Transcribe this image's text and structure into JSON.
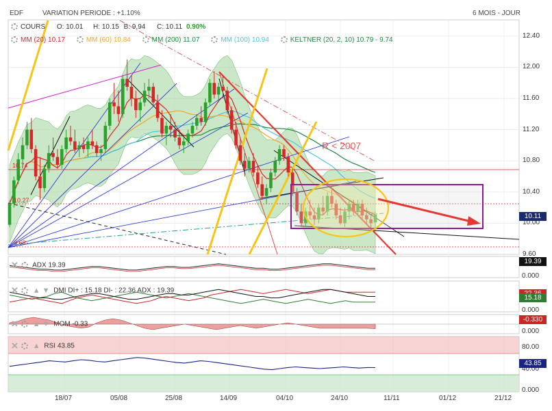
{
  "header": {
    "symbol": "EDF",
    "variation": "VARIATION PERIODE : +1.10%",
    "period": "6 MOIS - JOUR"
  },
  "legend": {
    "cours": "COURS",
    "open": "O: 10.01",
    "high": "H: 10.15",
    "low": "B: 9.94",
    "close": "C: 10.11",
    "change": "0.90%",
    "mm20": "MM (20)",
    "mm20_val": "10.17",
    "mm60": "MM (60)",
    "mm60_val": "10.84",
    "mm200": "MM (200)",
    "mm200_val": "11.07",
    "mm100": "MM (100)",
    "mm100_val": "10.94",
    "keltner": "KELTNER (20, 2, 10)",
    "keltner_val": "10.79 - 9.74"
  },
  "colors": {
    "up": "#2ca02c",
    "down": "#d62728",
    "mm20": "#d62728",
    "mm60": "#f5a623",
    "mm200": "#1a8a3a",
    "mm100": "#4fc3e0",
    "keltner_fill": "#9ed49a",
    "box": "#8b1a8b",
    "ellipse": "#f5c518",
    "yellow_lines": "#f5c518"
  },
  "annotations": {
    "r2007": "R < 2007",
    "level_high": "10.74",
    "level_low": "10.27",
    "level_min": "9.68"
  },
  "price_axis": {
    "ticks": [
      "12.40",
      "12.00",
      "11.60",
      "11.20",
      "10.80",
      "10.40",
      "10.00",
      "9.60"
    ],
    "last_price": "10.11"
  },
  "x_axis": {
    "ticks": [
      "18/07",
      "05/08",
      "25/08",
      "14/09",
      "04/10",
      "24/10",
      "11/11",
      "01/12",
      "21/12"
    ]
  },
  "indicators": {
    "adx": {
      "label": "ADX",
      "value": "19.39",
      "axis": "0.000",
      "badge": "19.39"
    },
    "dmi": {
      "label": "DMI",
      "text": "DI+ : 15.18 DI- : 22.36 ADX : 19.39",
      "axis": "0.000",
      "badge1": "22.36",
      "badge2": "15.18"
    },
    "mom": {
      "label": "MOM",
      "value": "-0.33",
      "axis": "0.000",
      "badge": "-0.330"
    },
    "rsi": {
      "label": "RSI",
      "value": "43.85",
      "axis80": "80.00",
      "axis40": "40.00",
      "axis0": "0.000",
      "badge": "43.85"
    }
  },
  "chart_data": {
    "type": "line",
    "title": "EDF",
    "price_range": [
      9.6,
      12.6
    ],
    "candles": [
      [
        9.98,
        10.3,
        9.95,
        10.25
      ],
      [
        10.25,
        10.6,
        10.2,
        10.55
      ],
      [
        10.55,
        10.9,
        10.5,
        10.82
      ],
      [
        10.82,
        11.1,
        10.7,
        11.0
      ],
      [
        11.0,
        11.3,
        10.95,
        11.2
      ],
      [
        11.2,
        11.35,
        10.9,
        10.95
      ],
      [
        10.95,
        11.0,
        10.55,
        10.6
      ],
      [
        10.6,
        10.85,
        10.3,
        10.45
      ],
      [
        10.45,
        10.75,
        10.4,
        10.7
      ],
      [
        10.7,
        11.0,
        10.65,
        10.9
      ],
      [
        10.9,
        11.1,
        10.8,
        10.85
      ],
      [
        10.85,
        10.95,
        10.7,
        10.75
      ],
      [
        10.75,
        11.0,
        10.7,
        10.95
      ],
      [
        10.95,
        11.2,
        10.9,
        11.1
      ],
      [
        11.1,
        11.25,
        11.0,
        11.05
      ],
      [
        11.05,
        11.2,
        10.9,
        10.95
      ],
      [
        10.95,
        11.05,
        10.85,
        11.0
      ],
      [
        11.0,
        11.1,
        10.9,
        10.95
      ],
      [
        10.95,
        11.1,
        10.85,
        11.05
      ],
      [
        11.05,
        11.2,
        10.95,
        11.0
      ],
      [
        11.0,
        11.05,
        10.85,
        10.9
      ],
      [
        10.9,
        11.0,
        10.8,
        10.95
      ],
      [
        10.95,
        11.3,
        10.9,
        11.25
      ],
      [
        11.25,
        11.6,
        11.2,
        11.55
      ],
      [
        11.55,
        11.8,
        11.4,
        11.5
      ],
      [
        11.5,
        11.7,
        11.3,
        11.4
      ],
      [
        11.4,
        11.9,
        11.35,
        11.85
      ],
      [
        11.85,
        12.1,
        11.7,
        11.75
      ],
      [
        11.75,
        11.9,
        11.5,
        11.6
      ],
      [
        11.6,
        11.7,
        11.35,
        11.45
      ],
      [
        11.45,
        11.6,
        11.3,
        11.55
      ],
      [
        11.55,
        11.8,
        11.5,
        11.7
      ],
      [
        11.7,
        11.85,
        11.6,
        11.75
      ],
      [
        11.75,
        11.8,
        11.5,
        11.55
      ],
      [
        11.55,
        11.65,
        11.3,
        11.35
      ],
      [
        11.35,
        11.45,
        11.1,
        11.15
      ],
      [
        11.15,
        11.3,
        11.0,
        11.25
      ],
      [
        11.25,
        11.4,
        11.1,
        11.2
      ],
      [
        11.2,
        11.3,
        11.05,
        11.1
      ],
      [
        11.1,
        11.2,
        10.95,
        11.0
      ],
      [
        11.0,
        11.1,
        10.9,
        11.05
      ],
      [
        11.05,
        11.2,
        11.0,
        11.15
      ],
      [
        11.15,
        11.3,
        11.1,
        11.25
      ],
      [
        11.25,
        11.4,
        11.2,
        11.35
      ],
      [
        11.35,
        11.5,
        11.25,
        11.3
      ],
      [
        11.3,
        11.6,
        11.25,
        11.55
      ],
      [
        11.55,
        11.85,
        11.5,
        11.8
      ],
      [
        11.8,
        11.95,
        11.6,
        11.65
      ],
      [
        11.65,
        11.8,
        11.55,
        11.75
      ],
      [
        11.75,
        11.9,
        11.6,
        11.7
      ],
      [
        11.7,
        11.75,
        11.4,
        11.45
      ],
      [
        11.45,
        11.5,
        11.15,
        11.2
      ],
      [
        11.2,
        11.3,
        10.95,
        11.0
      ],
      [
        11.0,
        11.1,
        10.75,
        10.8
      ],
      [
        10.8,
        10.9,
        10.6,
        10.7
      ],
      [
        10.7,
        10.85,
        10.65,
        10.8
      ],
      [
        10.8,
        10.9,
        10.6,
        10.65
      ],
      [
        10.65,
        10.75,
        10.45,
        10.5
      ],
      [
        10.5,
        10.6,
        10.3,
        10.35
      ],
      [
        10.35,
        10.5,
        10.25,
        10.45
      ],
      [
        10.45,
        10.7,
        10.4,
        10.65
      ],
      [
        10.65,
        10.85,
        10.6,
        10.8
      ],
      [
        10.8,
        11.0,
        10.75,
        10.95
      ],
      [
        10.95,
        11.0,
        10.8,
        10.85
      ],
      [
        10.85,
        10.9,
        10.6,
        10.65
      ],
      [
        10.65,
        10.7,
        10.35,
        10.4
      ],
      [
        10.4,
        10.45,
        10.1,
        10.15
      ],
      [
        10.15,
        10.25,
        9.95,
        10.0
      ],
      [
        10.0,
        10.2,
        9.95,
        10.15
      ],
      [
        10.15,
        10.3,
        10.05,
        10.1
      ],
      [
        10.1,
        10.2,
        9.98,
        10.05
      ],
      [
        10.05,
        10.25,
        10.0,
        10.2
      ],
      [
        10.2,
        10.35,
        10.1,
        10.15
      ],
      [
        10.15,
        10.4,
        10.1,
        10.35
      ],
      [
        10.35,
        10.45,
        10.2,
        10.25
      ],
      [
        10.25,
        10.3,
        10.05,
        10.1
      ],
      [
        10.1,
        10.2,
        9.98,
        10.0
      ],
      [
        10.0,
        10.2,
        9.95,
        10.15
      ],
      [
        10.15,
        10.3,
        10.05,
        10.25
      ],
      [
        10.25,
        10.3,
        10.1,
        10.15
      ],
      [
        10.15,
        10.3,
        10.1,
        10.25
      ],
      [
        10.25,
        10.3,
        10.05,
        10.1
      ],
      [
        10.1,
        10.2,
        9.98,
        10.05
      ],
      [
        10.05,
        10.1,
        9.9,
        10.0
      ],
      [
        10.01,
        10.15,
        9.94,
        10.11
      ]
    ],
    "adx": [
      22,
      21,
      20,
      19,
      18,
      18,
      17,
      17,
      18,
      19,
      20,
      21,
      21,
      20,
      19,
      18,
      17,
      17,
      18,
      19,
      20,
      21,
      21,
      20,
      20,
      21,
      22,
      23,
      24,
      23,
      22,
      21,
      20,
      19,
      19,
      18,
      18,
      19,
      20,
      21,
      22,
      23,
      24,
      24,
      23,
      22,
      21,
      20,
      19,
      19
    ],
    "di_plus": [
      20,
      19,
      18,
      17,
      18,
      19,
      21,
      22,
      20,
      18,
      17,
      16,
      17,
      18,
      19,
      20,
      21,
      22,
      21,
      20,
      19,
      18,
      19,
      20,
      21,
      20,
      19,
      18,
      17,
      16,
      15,
      14,
      15,
      16,
      17,
      16,
      15,
      14,
      15,
      16,
      17,
      16,
      15,
      14,
      15,
      16,
      15,
      15,
      15,
      15
    ],
    "di_minus": [
      15,
      16,
      17,
      18,
      17,
      16,
      15,
      14,
      16,
      18,
      19,
      20,
      19,
      18,
      17,
      16,
      15,
      14,
      15,
      16,
      18,
      19,
      18,
      17,
      16,
      17,
      18,
      20,
      21,
      22,
      23,
      24,
      23,
      22,
      21,
      22,
      23,
      24,
      23,
      22,
      21,
      22,
      23,
      24,
      23,
      22,
      22,
      22,
      22,
      22
    ],
    "mom": [
      0.1,
      0.2,
      0.4,
      0.5,
      0.4,
      0.3,
      0.1,
      -0.1,
      -0.2,
      -0.3,
      -0.2,
      0.1,
      0.3,
      0.4,
      0.3,
      0.1,
      -0.1,
      -0.3,
      -0.4,
      -0.3,
      -0.2,
      -0.1,
      0.0,
      -0.1,
      -0.2,
      -0.3,
      -0.4,
      -0.3,
      -0.2,
      -0.1,
      -0.2,
      -0.3,
      -0.2,
      -0.1,
      0.0,
      0.1,
      0.0,
      -0.1,
      -0.2,
      -0.3,
      -0.3,
      -0.3,
      -0.3,
      -0.3,
      -0.3,
      -0.3,
      -0.33
    ],
    "rsi": [
      46,
      48,
      50,
      52,
      54,
      56,
      55,
      54,
      56,
      58,
      57,
      55,
      54,
      56,
      58,
      60,
      62,
      61,
      59,
      57,
      55,
      53,
      52,
      54,
      56,
      55,
      53,
      51,
      49,
      47,
      45,
      43,
      41,
      40,
      42,
      44,
      45,
      44,
      43,
      42,
      43,
      44,
      45,
      44,
      43,
      44,
      43.85
    ]
  }
}
